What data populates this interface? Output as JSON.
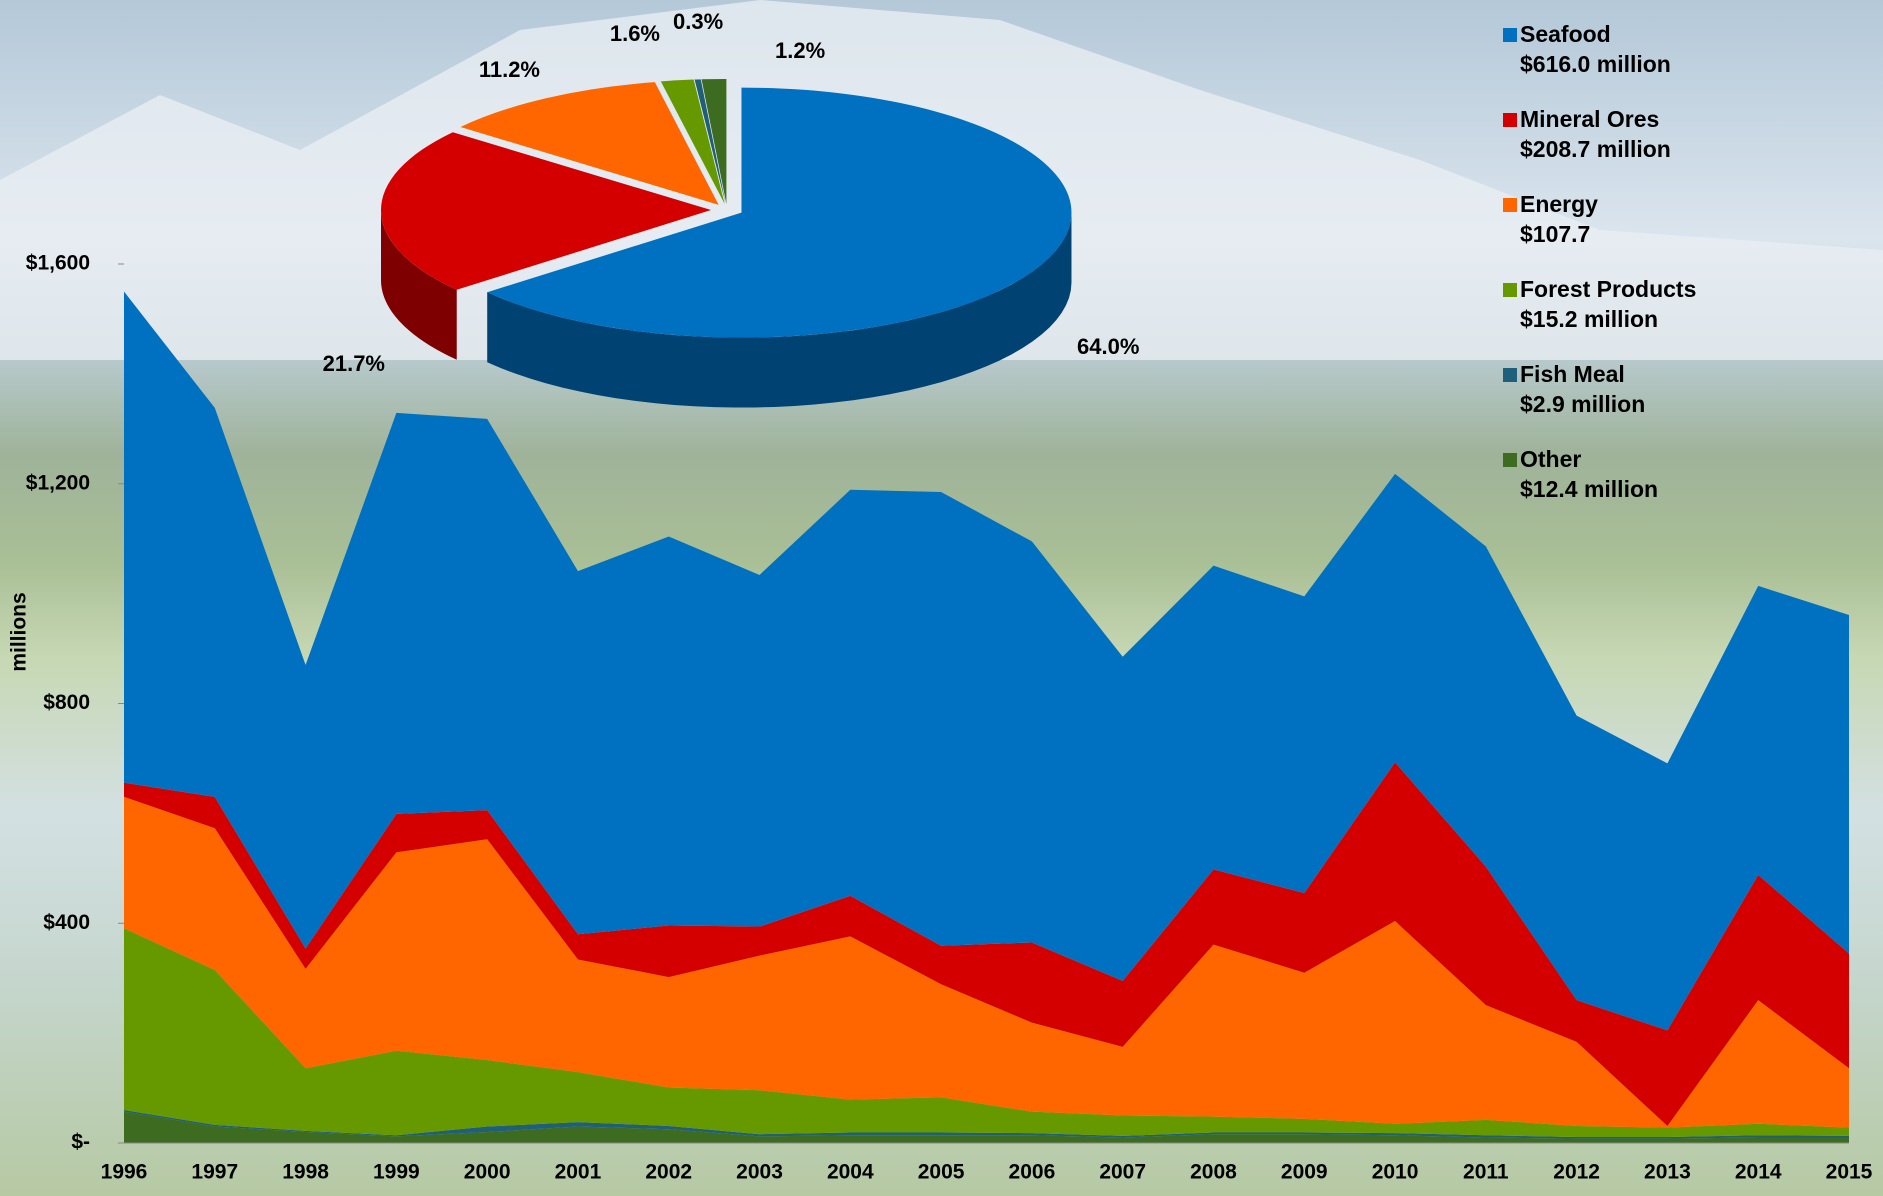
{
  "chart_data": [
    {
      "type": "area",
      "y_label": "millions",
      "x": [
        1996,
        1997,
        1998,
        1999,
        2000,
        2001,
        2002,
        2003,
        2004,
        2005,
        2006,
        2007,
        2008,
        2009,
        2010,
        2011,
        2012,
        2013,
        2014,
        2015
      ],
      "xlim": [
        1996,
        2015
      ],
      "ylim": [
        0,
        1600
      ],
      "yticks": [
        {
          "value": 0,
          "label": "$-"
        },
        {
          "value": 400,
          "label": "$400"
        },
        {
          "value": 800,
          "label": "$800"
        },
        {
          "value": 1200,
          "label": "$1,200"
        },
        {
          "value": 1600,
          "label": "$1,600"
        }
      ],
      "series": [
        {
          "color": "#3d6b1f",
          "values": [
            57,
            30,
            20,
            12,
            20,
            30,
            25,
            12,
            14,
            14,
            14,
            10,
            16,
            16,
            14,
            10,
            8,
            8,
            10,
            10
          ]
        },
        {
          "color": "#1f5f7a",
          "values": [
            3,
            3,
            2,
            2,
            10,
            8,
            6,
            4,
            5,
            5,
            4,
            3,
            3,
            3,
            4,
            4,
            3,
            3,
            4,
            3
          ]
        },
        {
          "color": "#669900",
          "values": [
            331,
            282,
            114,
            154,
            121,
            91,
            70,
            80,
            60,
            64,
            39,
            37,
            29,
            25,
            17,
            28,
            20,
            17,
            21,
            15
          ]
        },
        {
          "color": "#ff6600",
          "values": [
            239,
            258,
            181,
            361,
            402,
            205,
            201,
            245,
            297,
            206,
            162,
            125,
            313,
            266,
            369,
            209,
            153,
            3,
            225,
            108
          ]
        },
        {
          "color": "#d40000",
          "values": [
            26,
            57,
            37,
            70,
            53,
            46,
            94,
            53,
            74,
            70,
            146,
            120,
            137,
            145,
            289,
            252,
            76,
            174,
            228,
            209
          ]
        },
        {
          "color": "#0070c0",
          "values": [
            894,
            708,
            516,
            730,
            712,
            661,
            708,
            640,
            739,
            826,
            730,
            590,
            553,
            540,
            525,
            583,
            518,
            486,
            526,
            616
          ]
        }
      ]
    },
    {
      "type": "pie",
      "categories": [
        "Seafood",
        "Mineral Ores",
        "Energy",
        "Forest Products",
        "Fish Meal",
        "Other"
      ],
      "legend_labels": [
        "$616.0 million",
        "$208.7 million",
        "$107.7",
        "$15.2 million",
        "$2.9 million",
        "$12.4 million"
      ],
      "values": [
        64.0,
        21.7,
        11.2,
        1.6,
        0.3,
        1.2
      ],
      "value_labels": [
        "64.0%",
        "21.7%",
        "11.2%",
        "1.6%",
        "0.3%",
        "1.2%"
      ],
      "colors": [
        "#0070c0",
        "#d40000",
        "#ff6600",
        "#669900",
        "#1f5f7a",
        "#3d6b1f"
      ]
    }
  ]
}
